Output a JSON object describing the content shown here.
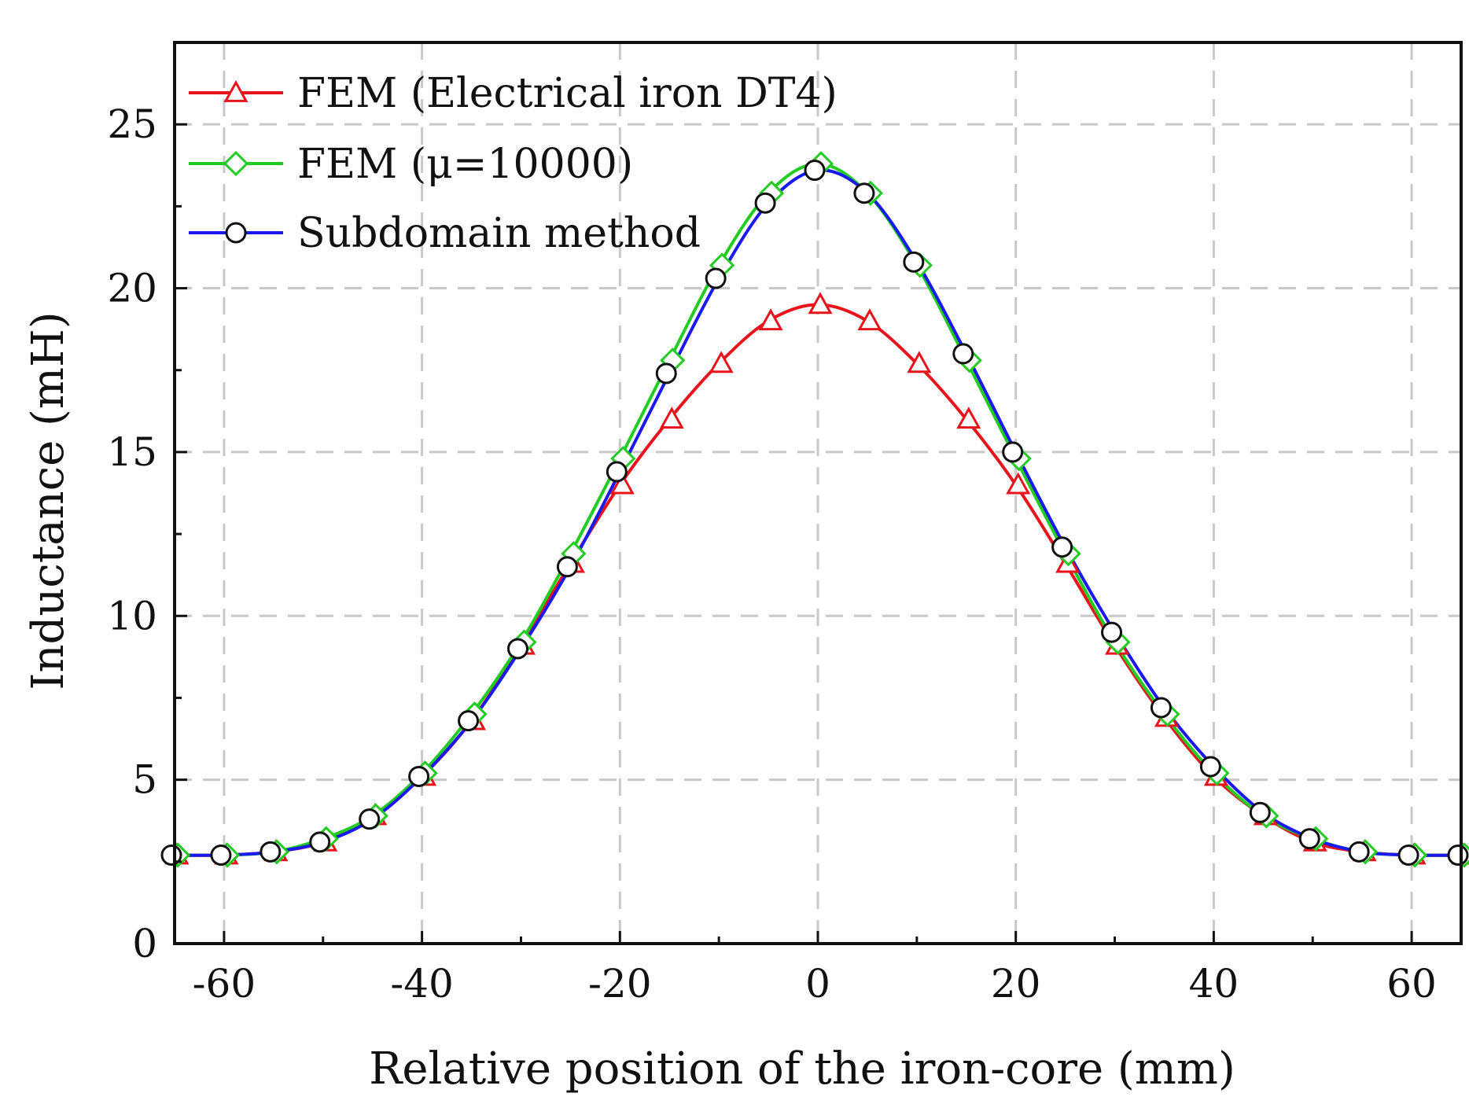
{
  "chart_data": {
    "type": "line",
    "xlabel": "Relative position of the iron-core (mm)",
    "ylabel": "Inductance (mH)",
    "xlim": [
      -65,
      65
    ],
    "ylim": [
      0,
      27.5
    ],
    "xticks": [
      -60,
      -40,
      -20,
      0,
      20,
      40,
      60
    ],
    "yticks": [
      0,
      5,
      10,
      15,
      20,
      25
    ],
    "grid": true,
    "legend_position": "top-left",
    "x": [
      -65,
      -60,
      -55,
      -50,
      -45,
      -40,
      -35,
      -30,
      -25,
      -20,
      -15,
      -10,
      -5,
      0,
      5,
      10,
      15,
      20,
      25,
      30,
      35,
      40,
      45,
      50,
      55,
      60,
      65
    ],
    "series": [
      {
        "name": "FEM (Electrical iron DT4)",
        "color": "#e8141c",
        "marker": "triangle",
        "values": [
          2.7,
          2.7,
          2.8,
          3.1,
          3.9,
          5.1,
          6.8,
          9.1,
          11.6,
          14.0,
          16.0,
          17.7,
          19.0,
          19.5,
          19.0,
          17.7,
          16.0,
          14.0,
          11.6,
          9.1,
          6.9,
          5.1,
          3.9,
          3.1,
          2.8,
          2.7,
          2.7
        ]
      },
      {
        "name": "FEM (μ=10000)",
        "color": "#22cc22",
        "marker": "diamond",
        "values": [
          2.7,
          2.7,
          2.8,
          3.2,
          3.9,
          5.2,
          7.0,
          9.2,
          11.9,
          14.8,
          17.8,
          20.7,
          22.9,
          23.8,
          22.9,
          20.7,
          17.8,
          14.8,
          11.9,
          9.2,
          7.0,
          5.2,
          3.9,
          3.2,
          2.8,
          2.7,
          2.7
        ]
      },
      {
        "name": "Subdomain method",
        "color": "#1a1aee",
        "marker": "circle",
        "values": [
          2.7,
          2.7,
          2.8,
          3.1,
          3.8,
          5.1,
          6.8,
          9.0,
          11.5,
          14.4,
          17.4,
          20.3,
          22.6,
          23.6,
          22.9,
          20.8,
          18.0,
          15.0,
          12.1,
          9.5,
          7.2,
          5.4,
          4.0,
          3.2,
          2.8,
          2.7,
          2.7
        ]
      }
    ]
  }
}
